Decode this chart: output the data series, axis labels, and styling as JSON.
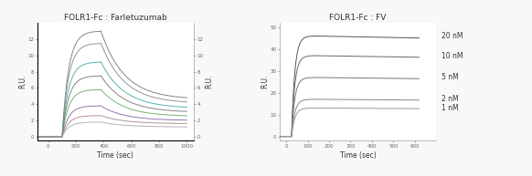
{
  "title_left": "FOLR1-Fc : Farletuzumab",
  "title_right": "FOLR1-Fc : FV",
  "ylabel": "R.U.",
  "xlabel": "Time (sec)",
  "background_color": "#f8f8f8",
  "left_plot": {
    "xlim": [
      -80,
      1050
    ],
    "ylim": [
      -0.5,
      14
    ],
    "baseline_end": 100,
    "association_end": 380,
    "dissociation_end": 1000,
    "curves": [
      {
        "peak": 13.0,
        "plateau": 4.6,
        "color": "#777777",
        "lw": 0.7
      },
      {
        "peak": 11.5,
        "plateau": 4.1,
        "color": "#888888",
        "lw": 0.7
      },
      {
        "peak": 9.2,
        "plateau": 3.5,
        "color": "#44aaaa",
        "lw": 0.7
      },
      {
        "peak": 7.5,
        "plateau": 3.0,
        "color": "#777777",
        "lw": 0.7
      },
      {
        "peak": 5.8,
        "plateau": 2.5,
        "color": "#66aa66",
        "lw": 0.7
      },
      {
        "peak": 3.8,
        "plateau": 2.0,
        "color": "#8866aa",
        "lw": 0.7
      },
      {
        "peak": 2.6,
        "plateau": 1.6,
        "color": "#aa8888",
        "lw": 0.7
      },
      {
        "peak": 1.8,
        "plateau": 1.2,
        "color": "#aaaaaa",
        "lw": 0.7
      }
    ],
    "xtick_vals": [
      0,
      200,
      400,
      600,
      800,
      1000
    ],
    "ytick_vals": [
      0,
      2,
      4,
      6,
      8,
      10,
      12
    ]
  },
  "right_plot": {
    "xlim": [
      -30,
      700
    ],
    "ylim": [
      -2,
      52
    ],
    "baseline_end": 25,
    "association_end": 130,
    "dissociation_end": 620,
    "labels": [
      "20 nM",
      "10 nM",
      "5 nM",
      "2 nM",
      "1 nM"
    ],
    "curves": [
      {
        "plateau": 46,
        "color": "#555555",
        "lw": 0.7
      },
      {
        "plateau": 37,
        "color": "#666666",
        "lw": 0.7
      },
      {
        "plateau": 27,
        "color": "#777777",
        "lw": 0.7
      },
      {
        "plateau": 17,
        "color": "#888888",
        "lw": 0.7
      },
      {
        "plateau": 13,
        "color": "#999999",
        "lw": 0.7
      }
    ],
    "xtick_vals": [
      0,
      100,
      200,
      300,
      400,
      500,
      600
    ],
    "ytick_vals": [
      0,
      10,
      20,
      30,
      40,
      50
    ]
  },
  "title_fontsize": 6.5,
  "label_fontsize": 5.5,
  "tick_fontsize": 4.0,
  "legend_fontsize": 5.5
}
